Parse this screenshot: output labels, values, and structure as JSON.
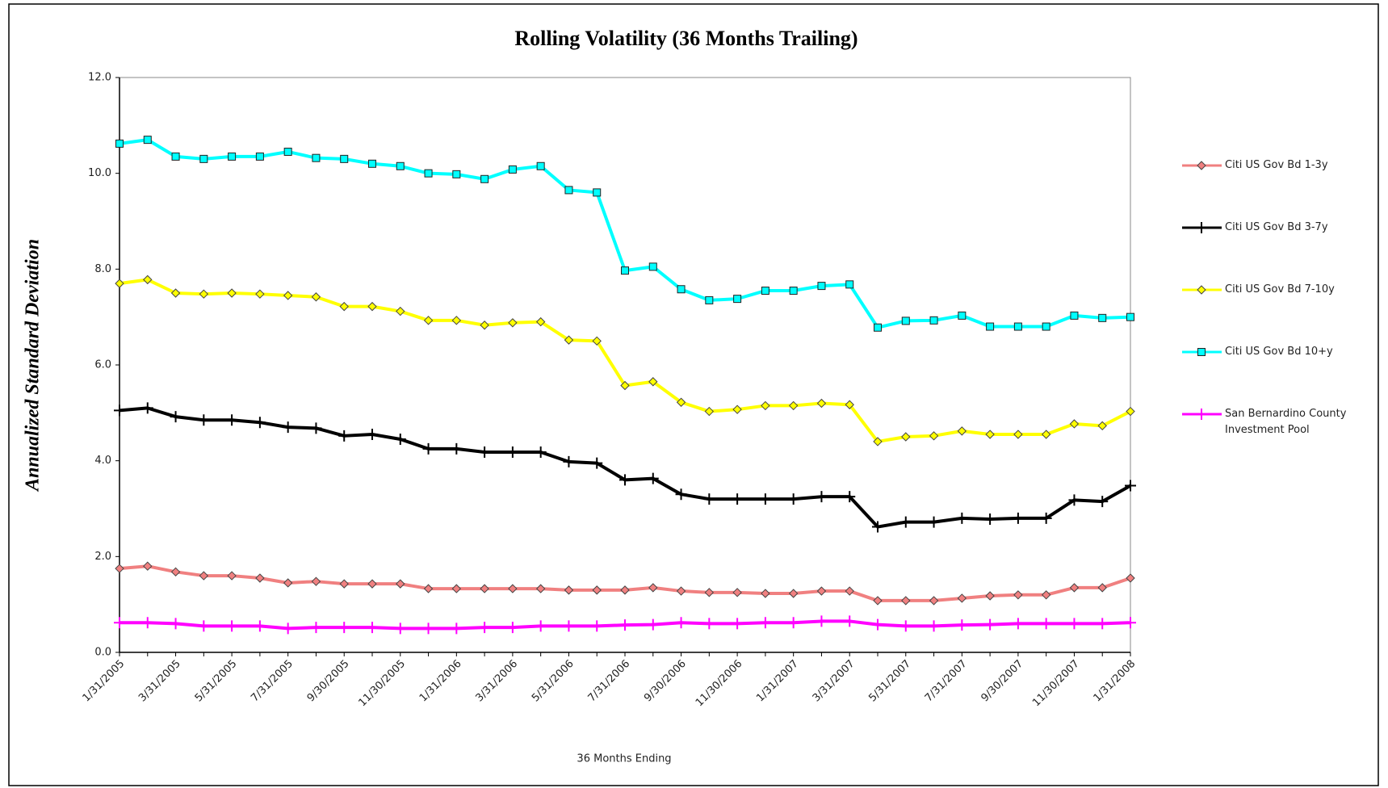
{
  "chart_data": {
    "type": "line",
    "title": "Rolling Volatility (36 Months Trailing)",
    "x_label": "36 Months Ending",
    "y_label": "Annualized Standard Deviation",
    "categories": [
      "1/31/2005",
      null,
      "3/31/2005",
      null,
      "5/31/2005",
      null,
      "7/31/2005",
      null,
      "9/30/2005",
      null,
      "11/30/2005",
      null,
      "1/31/2006",
      null,
      "3/31/2006",
      null,
      "5/31/2006",
      null,
      "7/31/2006",
      null,
      "9/30/2006",
      null,
      "11/30/2006",
      null,
      "1/31/2007",
      null,
      "3/31/2007",
      null,
      "5/31/2007",
      null,
      "7/31/2007",
      null,
      "9/30/2007",
      null,
      "11/30/2007",
      null,
      "1/31/2008"
    ],
    "ylim": [
      0,
      12
    ],
    "yticks": [
      {
        "value": 0,
        "label": "0.0"
      },
      {
        "value": 2,
        "label": "2.0"
      },
      {
        "value": 4,
        "label": "4.0"
      },
      {
        "value": 6,
        "label": "6.0"
      },
      {
        "value": 8,
        "label": "8.0"
      },
      {
        "value": 10,
        "label": "10.0"
      },
      {
        "value": 12,
        "label": "12.0"
      }
    ],
    "grid": false,
    "legend": "right",
    "series": [
      {
        "name": "Citi US Gov Bd 1-3y",
        "color": "#f08080",
        "marker": "diamond",
        "values": [
          1.75,
          1.8,
          1.68,
          1.6,
          1.6,
          1.55,
          1.45,
          1.48,
          1.43,
          1.43,
          1.43,
          1.33,
          1.33,
          1.33,
          1.33,
          1.33,
          1.3,
          1.3,
          1.3,
          1.35,
          1.28,
          1.25,
          1.25,
          1.23,
          1.23,
          1.28,
          1.28,
          1.08,
          1.08,
          1.08,
          1.13,
          1.18,
          1.2,
          1.2,
          1.35,
          1.35,
          1.55
        ]
      },
      {
        "name": "Citi US Gov Bd 3-7y",
        "color": "#000000",
        "marker": "plus",
        "values": [
          5.05,
          5.1,
          4.92,
          4.85,
          4.85,
          4.8,
          4.7,
          4.68,
          4.52,
          4.55,
          4.45,
          4.25,
          4.25,
          4.18,
          4.18,
          4.18,
          3.98,
          3.95,
          3.6,
          3.63,
          3.3,
          3.2,
          3.2,
          3.2,
          3.2,
          3.25,
          3.25,
          2.62,
          2.72,
          2.72,
          2.8,
          2.78,
          2.8,
          2.8,
          3.18,
          3.15,
          3.48
        ]
      },
      {
        "name": "Citi US Gov Bd 7-10y",
        "color": "#ffff00",
        "marker": "diamond",
        "values": [
          7.7,
          7.78,
          7.5,
          7.48,
          7.5,
          7.48,
          7.45,
          7.42,
          7.22,
          7.22,
          7.12,
          6.93,
          6.93,
          6.83,
          6.88,
          6.9,
          6.52,
          6.5,
          5.57,
          5.65,
          5.22,
          5.03,
          5.07,
          5.15,
          5.15,
          5.2,
          5.17,
          4.4,
          4.5,
          4.52,
          4.62,
          4.55,
          4.55,
          4.55,
          4.77,
          4.73,
          5.03
        ]
      },
      {
        "name": "Citi US Gov Bd 10+y",
        "color": "#00ffff",
        "marker": "square",
        "values": [
          10.62,
          10.7,
          10.35,
          10.3,
          10.35,
          10.35,
          10.45,
          10.32,
          10.3,
          10.2,
          10.15,
          10.0,
          9.98,
          9.88,
          10.08,
          10.15,
          9.65,
          9.6,
          7.97,
          8.05,
          7.58,
          7.35,
          7.38,
          7.55,
          7.55,
          7.65,
          7.68,
          6.78,
          6.92,
          6.93,
          7.03,
          6.8,
          6.8,
          6.8,
          7.03,
          6.98,
          7.0
        ]
      },
      {
        "name": "San Bernardino County Investment Pool",
        "color": "#ff00ff",
        "marker": "plus",
        "values": [
          0.62,
          0.62,
          0.6,
          0.55,
          0.55,
          0.55,
          0.5,
          0.52,
          0.52,
          0.52,
          0.5,
          0.5,
          0.5,
          0.52,
          0.52,
          0.55,
          0.55,
          0.55,
          0.57,
          0.58,
          0.62,
          0.6,
          0.6,
          0.62,
          0.62,
          0.65,
          0.65,
          0.58,
          0.55,
          0.55,
          0.57,
          0.58,
          0.6,
          0.6,
          0.6,
          0.6,
          0.62
        ]
      }
    ]
  }
}
